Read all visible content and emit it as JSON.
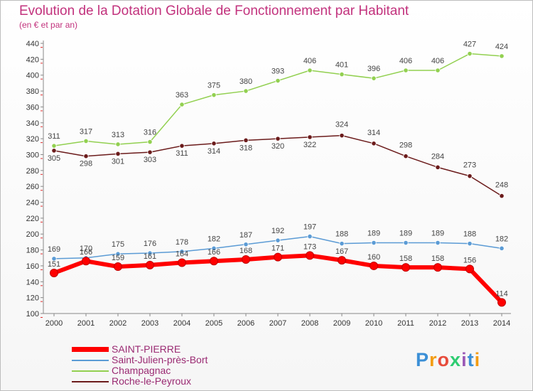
{
  "chart_data": {
    "type": "line",
    "title": "Evolution de la Dotation Globale de Fonctionnement par Habitant",
    "subtitle": "(en € et par an)",
    "x": [
      "2000",
      "2001",
      "2002",
      "2003",
      "2004",
      "2005",
      "2006",
      "2007",
      "2008",
      "2009",
      "2010",
      "2011",
      "2012",
      "2013",
      "2014"
    ],
    "ylim": [
      100,
      440
    ],
    "yticks": [
      100,
      120,
      140,
      160,
      180,
      200,
      220,
      240,
      260,
      280,
      300,
      320,
      340,
      360,
      380,
      400,
      420,
      440
    ],
    "grid": false,
    "legend_position": "bottom-left",
    "series": [
      {
        "name": "SAINT-PIERRE",
        "color": "#ff0000",
        "values": [
          151,
          166,
          159,
          161,
          164,
          166,
          168,
          171,
          173,
          167,
          160,
          158,
          158,
          156,
          114
        ]
      },
      {
        "name": "Saint-Julien-près-Bort",
        "color": "#5b9bd5",
        "values": [
          169,
          170,
          175,
          176,
          178,
          182,
          187,
          192,
          197,
          188,
          189,
          189,
          189,
          188,
          182
        ]
      },
      {
        "name": "Champagnac",
        "color": "#92d050",
        "values": [
          311,
          317,
          313,
          316,
          363,
          375,
          380,
          393,
          406,
          401,
          396,
          406,
          406,
          427,
          424
        ]
      },
      {
        "name": "Roche-le-Peyroux",
        "color": "#6b1b1b",
        "values": [
          305,
          298,
          301,
          303,
          311,
          314,
          318,
          320,
          322,
          324,
          314,
          298,
          284,
          273,
          248
        ]
      }
    ]
  },
  "logo": {
    "text": "Proxiti",
    "colors": [
      "#3b8fd6",
      "#f39c12",
      "#e74c3c",
      "#2ecc71",
      "#9b59b6",
      "#3b8fd6",
      "#f39c12"
    ]
  }
}
